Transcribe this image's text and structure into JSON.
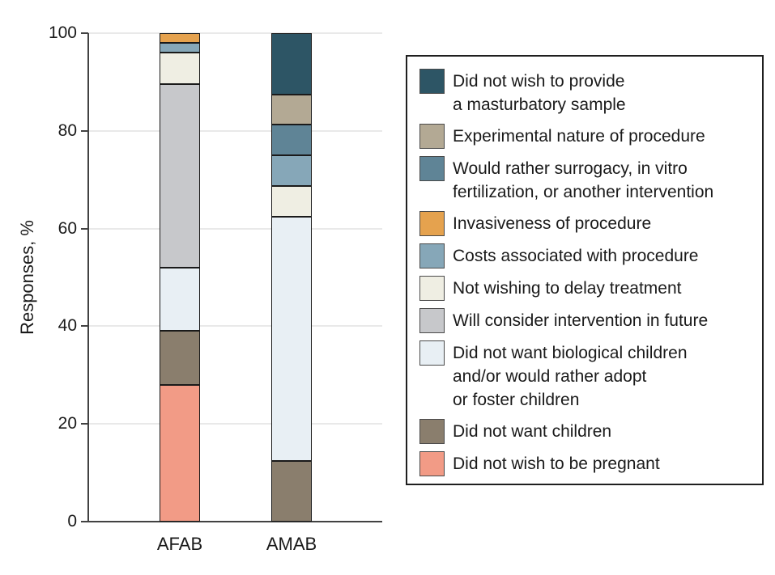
{
  "chart_data": {
    "type": "bar",
    "stacked": true,
    "title": "",
    "xlabel": "",
    "ylabel": "Responses, %",
    "ylim": [
      0,
      100
    ],
    "yticks": [
      0,
      20,
      40,
      60,
      80,
      100
    ],
    "grid": true,
    "legend_position": "right",
    "categories": [
      "AFAB",
      "AMAB"
    ],
    "series": [
      {
        "name": "Did not wish to be pregnant",
        "color": "#F29B86",
        "values": [
          28,
          0
        ]
      },
      {
        "name": "Did not want children",
        "color": "#8A7E6D",
        "values": [
          11,
          12.5
        ]
      },
      {
        "name": "Did not want biological children and/or would rather adopt or foster children",
        "color": "#E8EFF4",
        "values": [
          13,
          50
        ]
      },
      {
        "name": "Will consider intervention in future",
        "color": "#C7C8CB",
        "values": [
          37.5,
          0
        ]
      },
      {
        "name": "Not wishing to delay treatment",
        "color": "#EFEEE3",
        "values": [
          6.5,
          6.25
        ]
      },
      {
        "name": "Costs associated with procedure",
        "color": "#86A7B8",
        "values": [
          2,
          6.25
        ]
      },
      {
        "name": "Invasiveness of procedure",
        "color": "#E5A24E",
        "values": [
          2,
          0
        ]
      },
      {
        "name": "Would rather surrogacy, in vitro fertilization, or another intervention",
        "color": "#5F8496",
        "values": [
          0,
          6.25
        ]
      },
      {
        "name": "Experimental nature of procedure",
        "color": "#B3A994",
        "values": [
          0,
          6.25
        ]
      },
      {
        "name": "Did not wish to provide a masturbatory sample",
        "color": "#2D5565",
        "values": [
          0,
          12.5
        ]
      }
    ],
    "legend": [
      {
        "lines": [
          "Did not wish to provide",
          "a masturbatory sample"
        ],
        "color": "#2D5565"
      },
      {
        "lines": [
          "Experimental nature of procedure"
        ],
        "color": "#B3A994"
      },
      {
        "lines": [
          "Would rather surrogacy, in vitro",
          "fertilization, or another intervention"
        ],
        "color": "#5F8496"
      },
      {
        "lines": [
          "Invasiveness of procedure"
        ],
        "color": "#E5A24E"
      },
      {
        "lines": [
          "Costs associated with procedure"
        ],
        "color": "#86A7B8"
      },
      {
        "lines": [
          "Not wishing to delay treatment"
        ],
        "color": "#EFEEE3"
      },
      {
        "lines": [
          "Will consider intervention in future"
        ],
        "color": "#C7C8CB"
      },
      {
        "lines": [
          "Did not want biological children",
          "and/or would rather adopt",
          "or foster children"
        ],
        "color": "#E8EFF4"
      },
      {
        "lines": [
          "Did not want children"
        ],
        "color": "#8A7E6D"
      },
      {
        "lines": [
          "Did not wish to be pregnant"
        ],
        "color": "#F29B86"
      }
    ]
  }
}
